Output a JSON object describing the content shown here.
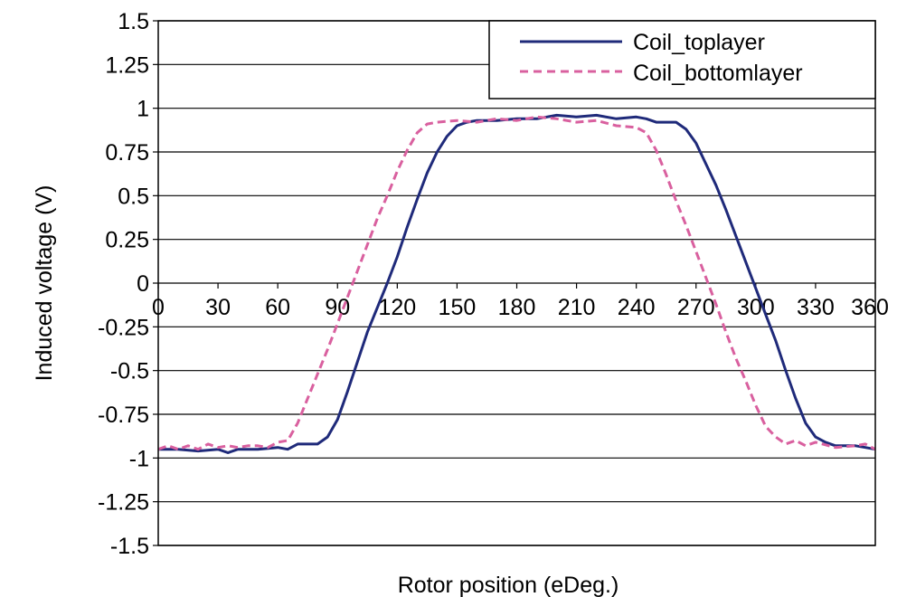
{
  "chart_data": {
    "type": "line",
    "title": "",
    "xlabel": "Rotor position (eDeg.)",
    "ylabel": "Induced voltage (V)",
    "xlim": [
      0,
      360
    ],
    "ylim": [
      -1.5,
      1.5
    ],
    "x_ticks": [
      "0",
      "30",
      "60",
      "90",
      "120",
      "150",
      "180",
      "210",
      "240",
      "270",
      "300",
      "330",
      "360"
    ],
    "y_ticks": [
      "1.5",
      "1.25",
      "1",
      "0.75",
      "0.5",
      "0.25",
      "0",
      "-0.25",
      "-0.5",
      "-0.75",
      "-1",
      "-1.25",
      "-1.5"
    ],
    "grid": "horizontal",
    "legend_position": "top-right",
    "series": [
      {
        "name": "Coil_toplayer",
        "color": "#1f2a7a",
        "style": "solid",
        "points": [
          [
            0,
            -0.95
          ],
          [
            10,
            -0.95
          ],
          [
            20,
            -0.96
          ],
          [
            30,
            -0.95
          ],
          [
            35,
            -0.97
          ],
          [
            40,
            -0.95
          ],
          [
            50,
            -0.95
          ],
          [
            60,
            -0.94
          ],
          [
            65,
            -0.95
          ],
          [
            70,
            -0.92
          ],
          [
            80,
            -0.92
          ],
          [
            85,
            -0.88
          ],
          [
            90,
            -0.78
          ],
          [
            95,
            -0.62
          ],
          [
            100,
            -0.45
          ],
          [
            105,
            -0.28
          ],
          [
            110,
            -0.14
          ],
          [
            115,
            0.0
          ],
          [
            120,
            0.15
          ],
          [
            125,
            0.32
          ],
          [
            130,
            0.48
          ],
          [
            135,
            0.63
          ],
          [
            140,
            0.75
          ],
          [
            145,
            0.84
          ],
          [
            150,
            0.9
          ],
          [
            155,
            0.92
          ],
          [
            160,
            0.93
          ],
          [
            170,
            0.93
          ],
          [
            180,
            0.94
          ],
          [
            190,
            0.94
          ],
          [
            200,
            0.96
          ],
          [
            210,
            0.95
          ],
          [
            220,
            0.96
          ],
          [
            230,
            0.94
          ],
          [
            240,
            0.95
          ],
          [
            245,
            0.94
          ],
          [
            250,
            0.92
          ],
          [
            260,
            0.92
          ],
          [
            265,
            0.88
          ],
          [
            270,
            0.8
          ],
          [
            275,
            0.68
          ],
          [
            280,
            0.56
          ],
          [
            285,
            0.42
          ],
          [
            290,
            0.27
          ],
          [
            295,
            0.12
          ],
          [
            300,
            -0.03
          ],
          [
            305,
            -0.18
          ],
          [
            310,
            -0.33
          ],
          [
            315,
            -0.5
          ],
          [
            320,
            -0.66
          ],
          [
            325,
            -0.8
          ],
          [
            330,
            -0.88
          ],
          [
            335,
            -0.91
          ],
          [
            340,
            -0.93
          ],
          [
            350,
            -0.93
          ],
          [
            355,
            -0.94
          ],
          [
            360,
            -0.95
          ]
        ]
      },
      {
        "name": "Coil_bottomlayer",
        "color": "#d9609f",
        "style": "dashed",
        "points": [
          [
            0,
            -0.95
          ],
          [
            5,
            -0.93
          ],
          [
            10,
            -0.95
          ],
          [
            15,
            -0.93
          ],
          [
            20,
            -0.95
          ],
          [
            25,
            -0.92
          ],
          [
            30,
            -0.94
          ],
          [
            35,
            -0.93
          ],
          [
            40,
            -0.94
          ],
          [
            45,
            -0.93
          ],
          [
            50,
            -0.93
          ],
          [
            55,
            -0.94
          ],
          [
            60,
            -0.91
          ],
          [
            65,
            -0.9
          ],
          [
            70,
            -0.8
          ],
          [
            75,
            -0.66
          ],
          [
            80,
            -0.52
          ],
          [
            85,
            -0.38
          ],
          [
            90,
            -0.23
          ],
          [
            95,
            -0.08
          ],
          [
            100,
            0.07
          ],
          [
            105,
            0.22
          ],
          [
            110,
            0.37
          ],
          [
            115,
            0.5
          ],
          [
            120,
            0.64
          ],
          [
            125,
            0.76
          ],
          [
            130,
            0.86
          ],
          [
            135,
            0.91
          ],
          [
            140,
            0.92
          ],
          [
            150,
            0.93
          ],
          [
            160,
            0.92
          ],
          [
            170,
            0.94
          ],
          [
            180,
            0.93
          ],
          [
            190,
            0.95
          ],
          [
            200,
            0.94
          ],
          [
            210,
            0.92
          ],
          [
            220,
            0.93
          ],
          [
            230,
            0.9
          ],
          [
            240,
            0.89
          ],
          [
            245,
            0.86
          ],
          [
            250,
            0.76
          ],
          [
            255,
            0.62
          ],
          [
            260,
            0.47
          ],
          [
            265,
            0.33
          ],
          [
            270,
            0.18
          ],
          [
            275,
            0.03
          ],
          [
            280,
            -0.12
          ],
          [
            285,
            -0.28
          ],
          [
            290,
            -0.43
          ],
          [
            295,
            -0.56
          ],
          [
            300,
            -0.7
          ],
          [
            305,
            -0.82
          ],
          [
            310,
            -0.88
          ],
          [
            315,
            -0.92
          ],
          [
            320,
            -0.9
          ],
          [
            325,
            -0.93
          ],
          [
            330,
            -0.91
          ],
          [
            340,
            -0.94
          ],
          [
            350,
            -0.93
          ],
          [
            355,
            -0.92
          ],
          [
            360,
            -0.95
          ]
        ]
      }
    ]
  }
}
